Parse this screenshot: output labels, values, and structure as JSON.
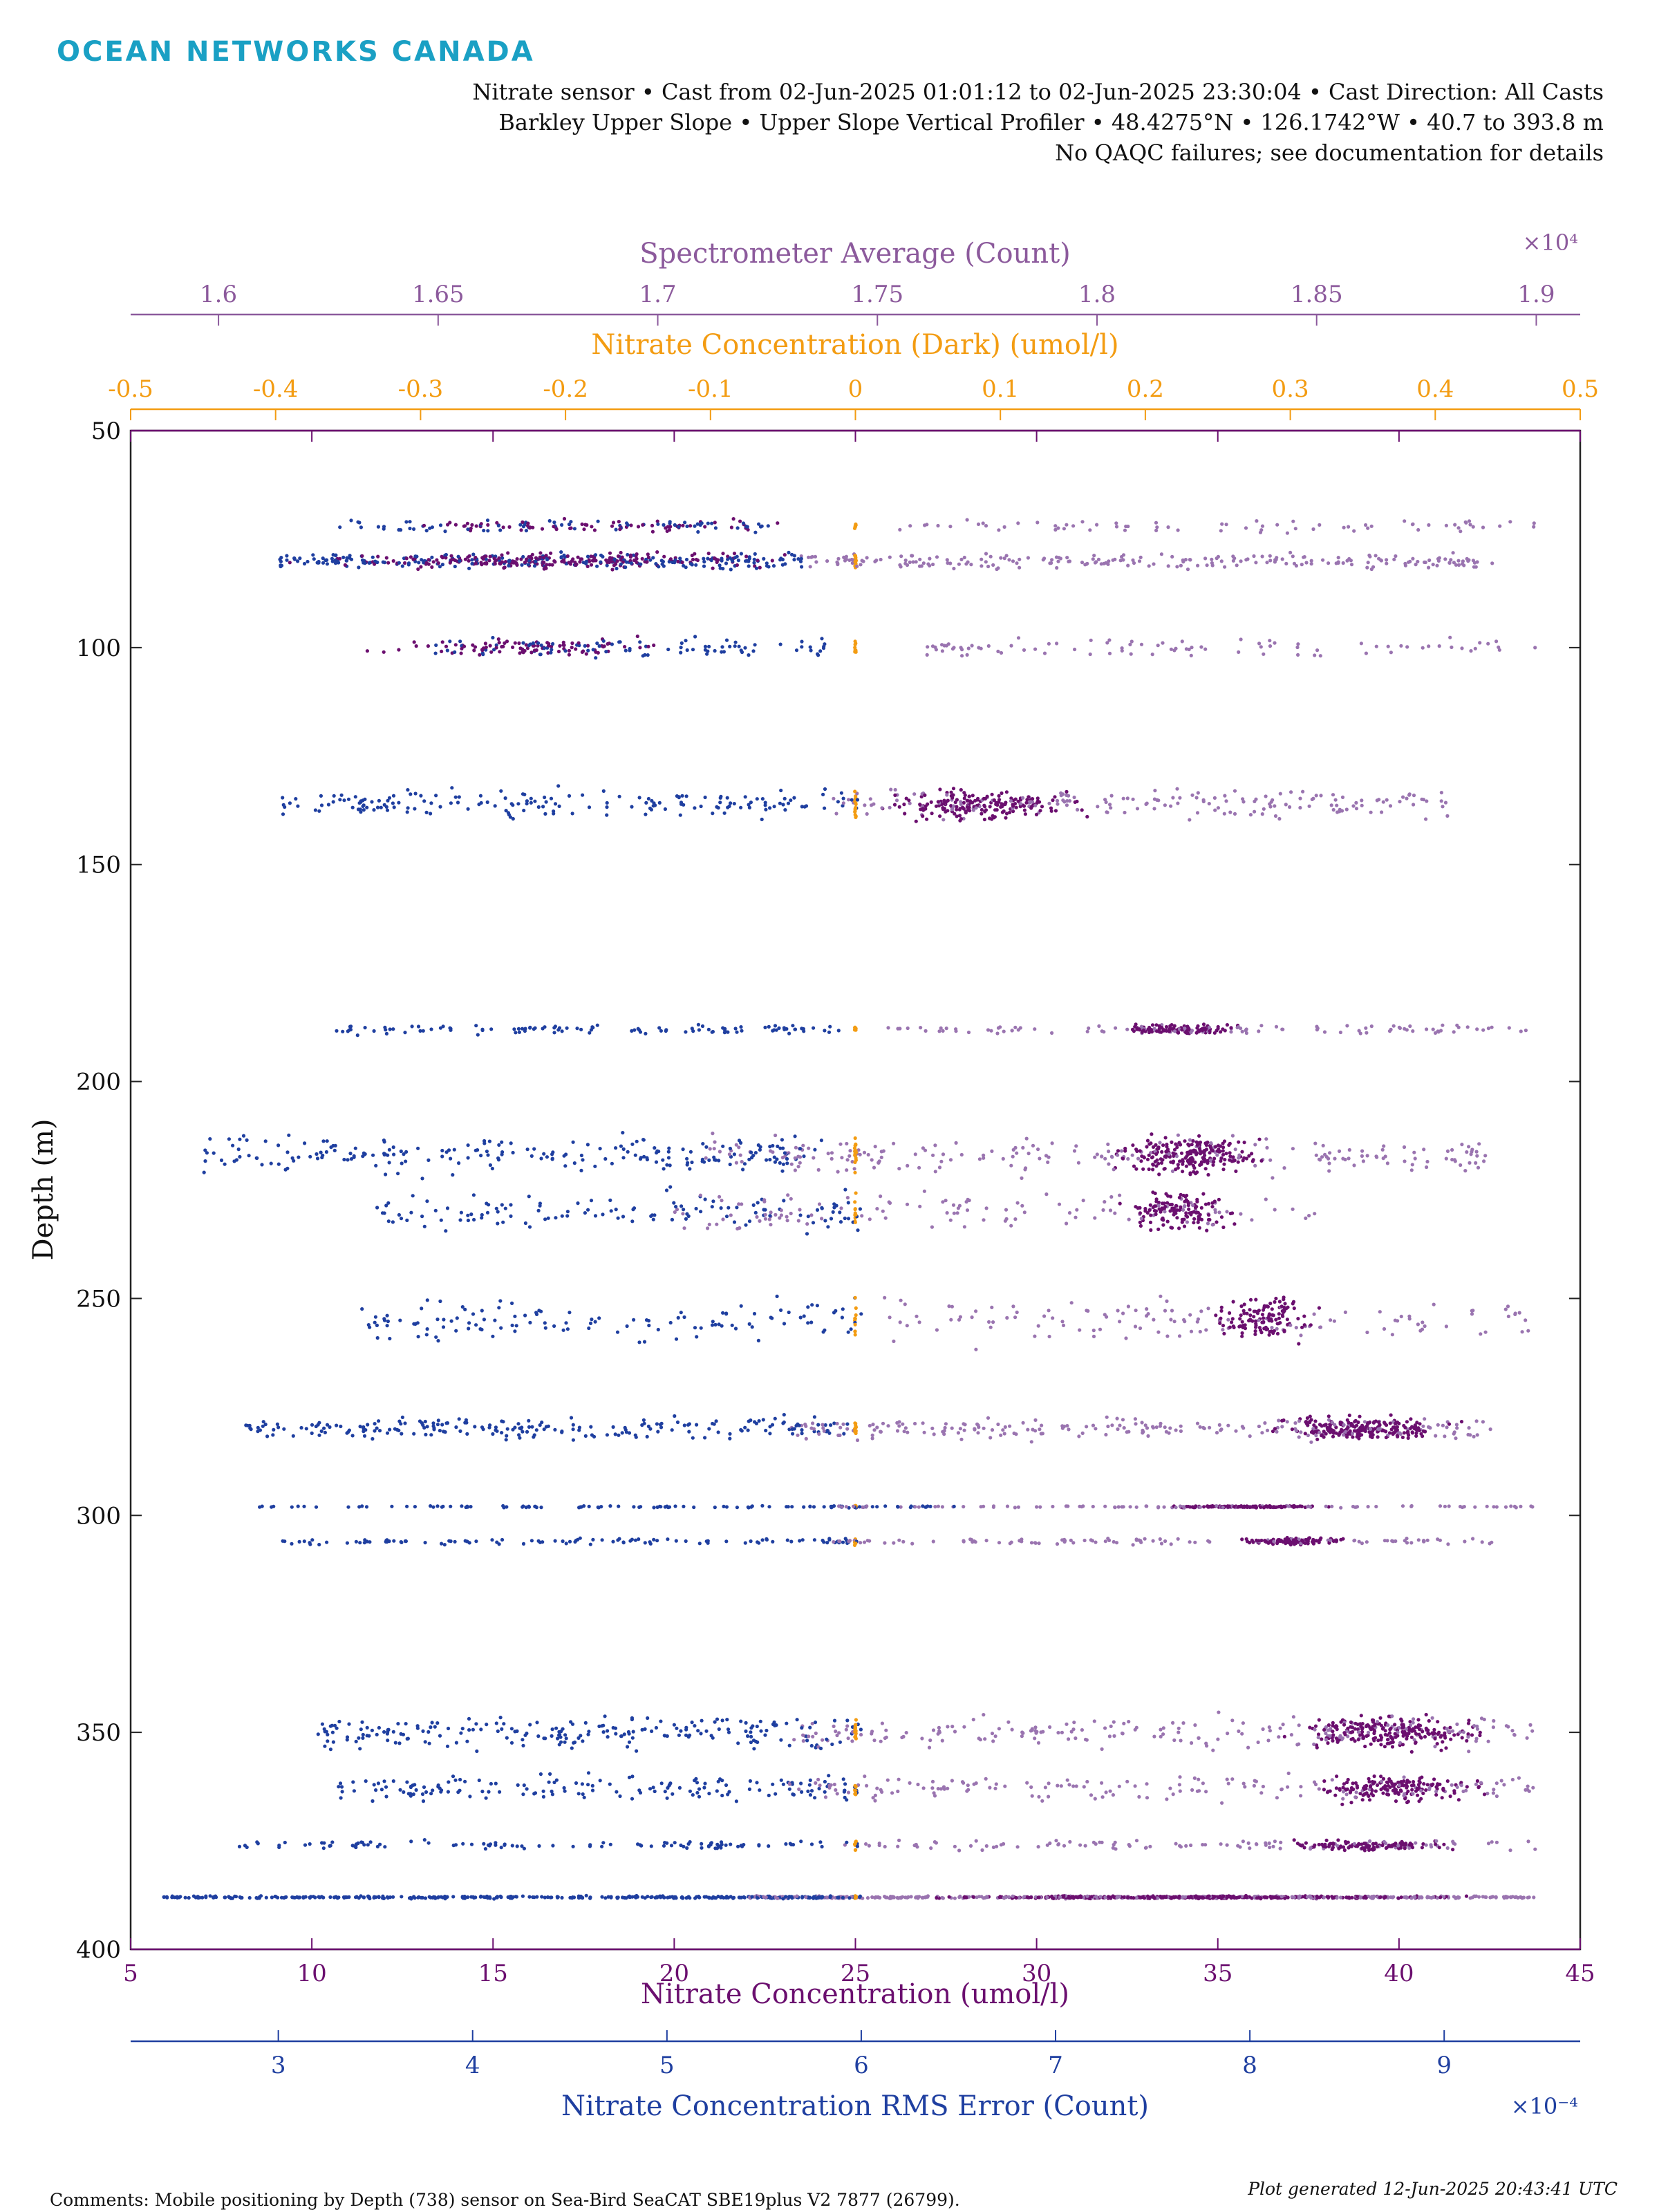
{
  "logo": "OCEAN NETWORKS CANADA",
  "header": {
    "line1": "Nitrate sensor • Cast from 02-Jun-2025 01:01:12 to 02-Jun-2025 23:30:04 • Cast Direction: All Casts",
    "line2": "Barkley Upper Slope • Upper Slope Vertical Profiler • 48.4275°N • 126.1742°W • 40.7 to 393.8 m",
    "line3": "No QAQC failures; see documentation for details"
  },
  "footer": {
    "generated": "Plot generated 12-Jun-2025 20:43:41 UTC",
    "comments": "Comments: Mobile positioning by Depth (738) sensor on Sea-Bird SeaCAT SBE19plus V2 7877 (26799)."
  },
  "colors": {
    "spectrometer": "#8c5a9c",
    "dark": "#f39c12",
    "primary": "#6b0f6f",
    "rms": "#1f3fa0",
    "mid": "#9a74b0",
    "axis": "#222222"
  },
  "chart_data": {
    "type": "scatter",
    "ylabel": "Depth (m)",
    "ylim": [
      50,
      400
    ],
    "yticks": [
      "50",
      "100",
      "150",
      "200",
      "250",
      "300",
      "350",
      "400"
    ],
    "y_reversed": true,
    "x_axes": [
      {
        "id": "spectrometer",
        "label": "Spectrometer Average (Count)",
        "exponent": "×10⁴",
        "xlim": [
          15.8,
          19.1
        ],
        "ticks": [
          16,
          16.5,
          17,
          17.5,
          18,
          18.5,
          19
        ],
        "tick_labels": [
          "1.6",
          "1.65",
          "1.7",
          "1.75",
          "1.8",
          "1.85",
          "1.9"
        ],
        "placement": "top"
      },
      {
        "id": "dark",
        "label": "Nitrate Concentration (Dark) (umol/l)",
        "xlim": [
          -0.5,
          0.5
        ],
        "ticks": [
          -0.5,
          -0.4,
          -0.3,
          -0.2,
          -0.1,
          0,
          0.1,
          0.2,
          0.3,
          0.4,
          0.5
        ],
        "tick_labels": [
          "-0.5",
          "-0.4",
          "-0.3",
          "-0.2",
          "-0.1",
          "0",
          "0.1",
          "0.2",
          "0.3",
          "0.4",
          "0.5"
        ],
        "placement": "top"
      },
      {
        "id": "primary",
        "label": "Nitrate Concentration (umol/l)",
        "xlim": [
          5,
          45
        ],
        "ticks": [
          5,
          10,
          15,
          20,
          25,
          30,
          35,
          40,
          45
        ],
        "tick_labels": [
          "5",
          "10",
          "15",
          "20",
          "25",
          "30",
          "35",
          "40",
          "45"
        ],
        "placement": "bottom"
      },
      {
        "id": "rms",
        "label": "Nitrate Concentration RMS Error (Count)",
        "exponent": "×10⁻⁴",
        "xlim": [
          2.24,
          9.7
        ],
        "ticks": [
          3,
          4,
          5,
          6,
          7,
          8,
          9
        ],
        "tick_labels": [
          "3",
          "4",
          "5",
          "6",
          "7",
          "8",
          "9"
        ],
        "placement": "bottom"
      }
    ],
    "series_colors": {
      "rms": "#1f3fa0",
      "spectrometer": "#9a74b0",
      "primary": "#6b0f6f",
      "dark": "#f39c12"
    },
    "depth_bands": [
      {
        "y_center": 80,
        "y_spread": 2.5,
        "rms_range": [
          3.0,
          5.7
        ],
        "spec_range": [
          17.3,
          18.9
        ],
        "prim_range": [
          8.5,
          25
        ],
        "dark": 0,
        "density": 1.3
      },
      {
        "y_center": 72,
        "y_spread": 2,
        "rms_range": [
          3.3,
          5.6
        ],
        "spec_range": [
          17.55,
          19.0
        ],
        "prim_range": [
          12,
          24
        ],
        "dark": 0,
        "density": 0.4
      },
      {
        "y_center": 100,
        "y_spread": 3,
        "rms_range": [
          3.8,
          5.9
        ],
        "spec_range": [
          17.6,
          19.0
        ],
        "prim_range": [
          11,
          21
        ],
        "dark": 0,
        "density": 0.5
      },
      {
        "y_center": 136,
        "y_spread": 4.5,
        "rms_range": [
          3.0,
          6.0
        ],
        "spec_range": [
          17.4,
          18.8
        ],
        "prim_range": [
          25,
          32
        ],
        "dark": 0,
        "density": 1.0
      },
      {
        "y_center": 188,
        "y_spread": 1.5,
        "rms_range": [
          3.3,
          5.9
        ],
        "spec_range": [
          17.5,
          19.0
        ],
        "prim_range": [
          32,
          36
        ],
        "dark": 0,
        "density": 0.6
      },
      {
        "y_center": 217,
        "y_spread": 6,
        "rms_range": [
          2.6,
          5.8
        ],
        "spec_range": [
          17.1,
          18.9
        ],
        "prim_range": [
          31.5,
          37
        ],
        "dark": 0,
        "density": 1.2
      },
      {
        "y_center": 230,
        "y_spread": 6,
        "rms_range": [
          3.5,
          6.0
        ],
        "spec_range": [
          17.0,
          18.5
        ],
        "prim_range": [
          32,
          36
        ],
        "dark": 0,
        "density": 0.7
      },
      {
        "y_center": 255,
        "y_spread": 7,
        "rms_range": [
          3.4,
          6.0
        ],
        "spec_range": [
          17.5,
          19.0
        ],
        "prim_range": [
          34.5,
          38
        ],
        "dark": 0,
        "density": 0.7
      },
      {
        "y_center": 280,
        "y_spread": 3.5,
        "rms_range": [
          2.8,
          6.0
        ],
        "spec_range": [
          17.3,
          18.9
        ],
        "prim_range": [
          36,
          42
        ],
        "dark": 0,
        "density": 1.2
      },
      {
        "y_center": 298,
        "y_spread": 0.3,
        "rms_range": [
          2.9,
          6.5
        ],
        "spec_range": [
          17.4,
          19.0
        ],
        "prim_range": [
          33,
          39
        ],
        "dark": 0,
        "density": 0.6
      },
      {
        "y_center": 306,
        "y_spread": 1,
        "rms_range": [
          3.0,
          6.0
        ],
        "spec_range": [
          17.4,
          18.9
        ],
        "prim_range": [
          35,
          39
        ],
        "dark": 0,
        "density": 0.6
      },
      {
        "y_center": 350,
        "y_spread": 5,
        "rms_range": [
          3.2,
          6.0
        ],
        "spec_range": [
          17.3,
          19.0
        ],
        "prim_range": [
          36.5,
          43
        ],
        "dark": 0,
        "density": 1.2
      },
      {
        "y_center": 363,
        "y_spread": 4,
        "rms_range": [
          3.3,
          6.0
        ],
        "spec_range": [
          17.3,
          19.0
        ],
        "prim_range": [
          37,
          43
        ],
        "dark": 0,
        "density": 0.9
      },
      {
        "y_center": 376,
        "y_spread": 1.5,
        "rms_range": [
          2.8,
          6.0
        ],
        "spec_range": [
          17.4,
          19.0
        ],
        "prim_range": [
          36,
          42
        ],
        "dark": 0,
        "density": 0.6
      },
      {
        "y_center": 388,
        "y_spread": 0.4,
        "rms_range": [
          2.4,
          6.0
        ],
        "spec_range": [
          17.2,
          19.0
        ],
        "prim_range": [
          25,
          44
        ],
        "dark": 0,
        "density": 2.0
      }
    ],
    "grid": false,
    "legend": "none"
  }
}
